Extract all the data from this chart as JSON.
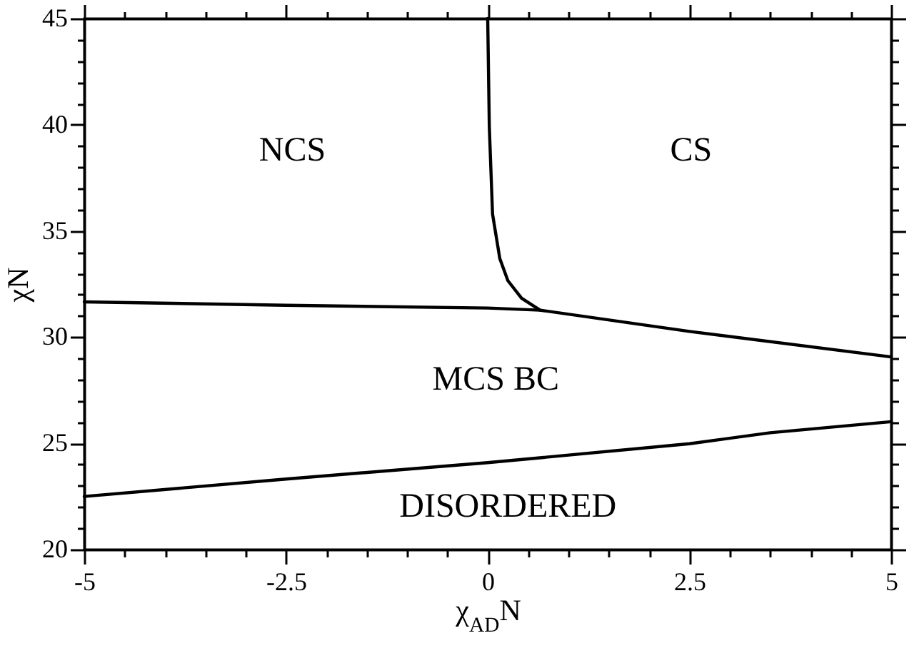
{
  "chart_data": {
    "type": "line",
    "xlabel": "χ$_{AD}$N",
    "ylabel": "χN",
    "xlim": [
      -5,
      5
    ],
    "ylim": [
      20,
      45
    ],
    "xticks": [
      -5,
      {
        "value": -4.5,
        "label": null
      },
      {
        "value": -4,
        "label": null
      },
      {
        "value": -3.5,
        "label": null
      },
      {
        "value": -3,
        "label": null
      },
      -2.5,
      {
        "value": -2,
        "label": null
      },
      {
        "value": -1.5,
        "label": null
      },
      {
        "value": -1,
        "label": null
      },
      {
        "value": -0.5,
        "label": null
      },
      0,
      {
        "value": 0.5,
        "label": null
      },
      {
        "value": 1,
        "label": null
      },
      {
        "value": 1.5,
        "label": null
      },
      {
        "value": 2,
        "label": null
      },
      2.5,
      {
        "value": 3,
        "label": null
      },
      {
        "value": 3.5,
        "label": null
      },
      {
        "value": 4,
        "label": null
      },
      {
        "value": 4.5,
        "label": null
      },
      5
    ],
    "yticks": [
      20,
      {
        "value": 21,
        "label": null
      },
      {
        "value": 22,
        "label": null
      },
      {
        "value": 23,
        "label": null
      },
      {
        "value": 24,
        "label": null
      },
      25,
      {
        "value": 26,
        "label": null
      },
      {
        "value": 27,
        "label": null
      },
      {
        "value": 28,
        "label": null
      },
      {
        "value": 29,
        "label": null
      },
      30,
      {
        "value": 31,
        "label": null
      },
      {
        "value": 32,
        "label": null
      },
      {
        "value": 33,
        "label": null
      },
      {
        "value": 34,
        "label": null
      },
      35,
      {
        "value": 36,
        "label": null
      },
      {
        "value": 37,
        "label": null
      },
      {
        "value": 38,
        "label": null
      },
      {
        "value": 39,
        "label": null
      },
      40,
      {
        "value": 41,
        "label": null
      },
      {
        "value": 42,
        "label": null
      },
      {
        "value": 43,
        "label": null
      },
      {
        "value": 44,
        "label": null
      },
      45
    ],
    "grid": false,
    "marker": "none",
    "line_style": "solid",
    "series": [
      {
        "color": "#000000",
        "x": [
          -5,
          -2.5,
          0,
          0.65,
          2.5,
          5
        ],
        "values": [
          31.66,
          31.5,
          31.37,
          31.27,
          30.27,
          29.07
        ]
      },
      {
        "color": "#000000",
        "x": [
          0,
          0.02,
          0.06,
          0.15,
          0.25,
          0.42,
          0.65
        ],
        "values": [
          45,
          39.9,
          35.8,
          33.7,
          32.66,
          31.83,
          31.27
        ]
      },
      {
        "color": "#000000",
        "x": [
          -5,
          -2.5,
          0,
          2.5,
          3.5,
          5
        ],
        "values": [
          22.5,
          23.32,
          24.09,
          24.98,
          25.5,
          26.02
        ]
      }
    ],
    "annotations": [
      "NCS",
      "CS",
      "MCS BC",
      "DISORDERED"
    ]
  }
}
